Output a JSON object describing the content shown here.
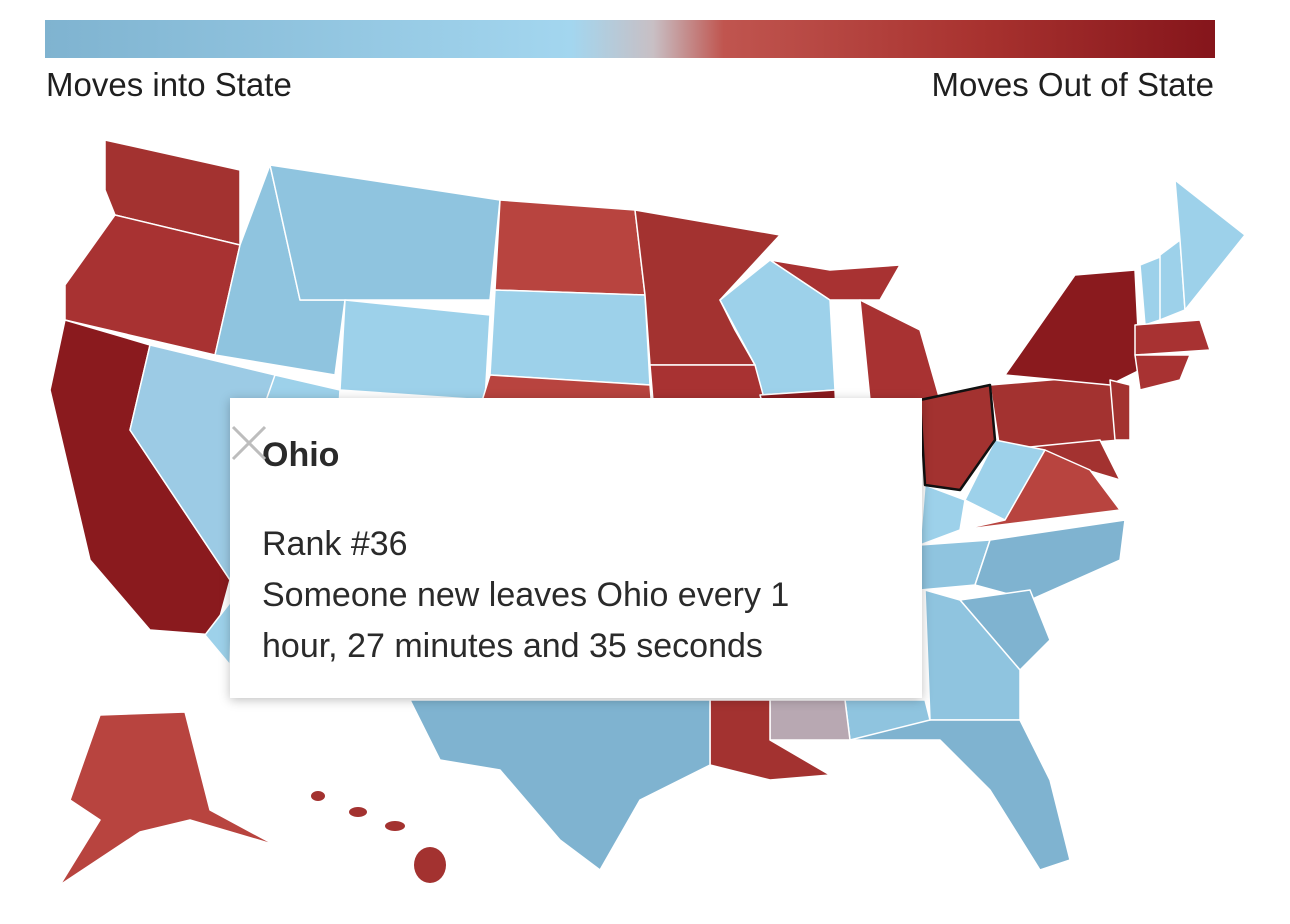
{
  "legend": {
    "left_label": "Moves into State",
    "right_label": "Moves Out of State"
  },
  "tooltip": {
    "title": "Ohio",
    "rank": "Rank #36",
    "message": "Someone new leaves Ohio every 1 hour, 27 minutes and 35 seconds"
  }
}
